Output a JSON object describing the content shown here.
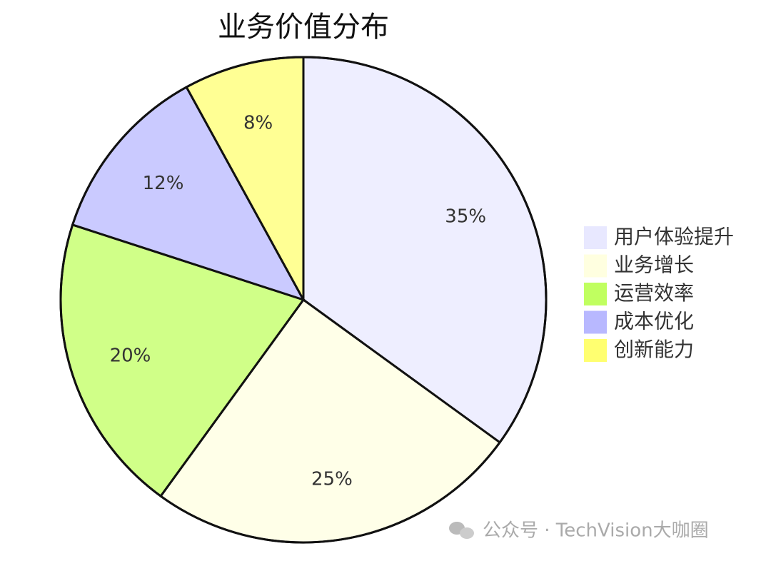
{
  "chart_data": {
    "type": "pie",
    "title": "业务价值分布",
    "categories": [
      "用户体验提升",
      "业务增长",
      "运营效率",
      "成本优化",
      "创新能力"
    ],
    "values": [
      35,
      25,
      20,
      12,
      8
    ],
    "value_labels": [
      "35%",
      "25%",
      "20%",
      "12%",
      "8%"
    ],
    "colors": [
      "#e8e8ff",
      "#ffffe0",
      "#c0ff60",
      "#b8b8ff",
      "#ffff70"
    ],
    "legend": "right"
  },
  "watermark": "公众号 · TechVision大咖圈"
}
